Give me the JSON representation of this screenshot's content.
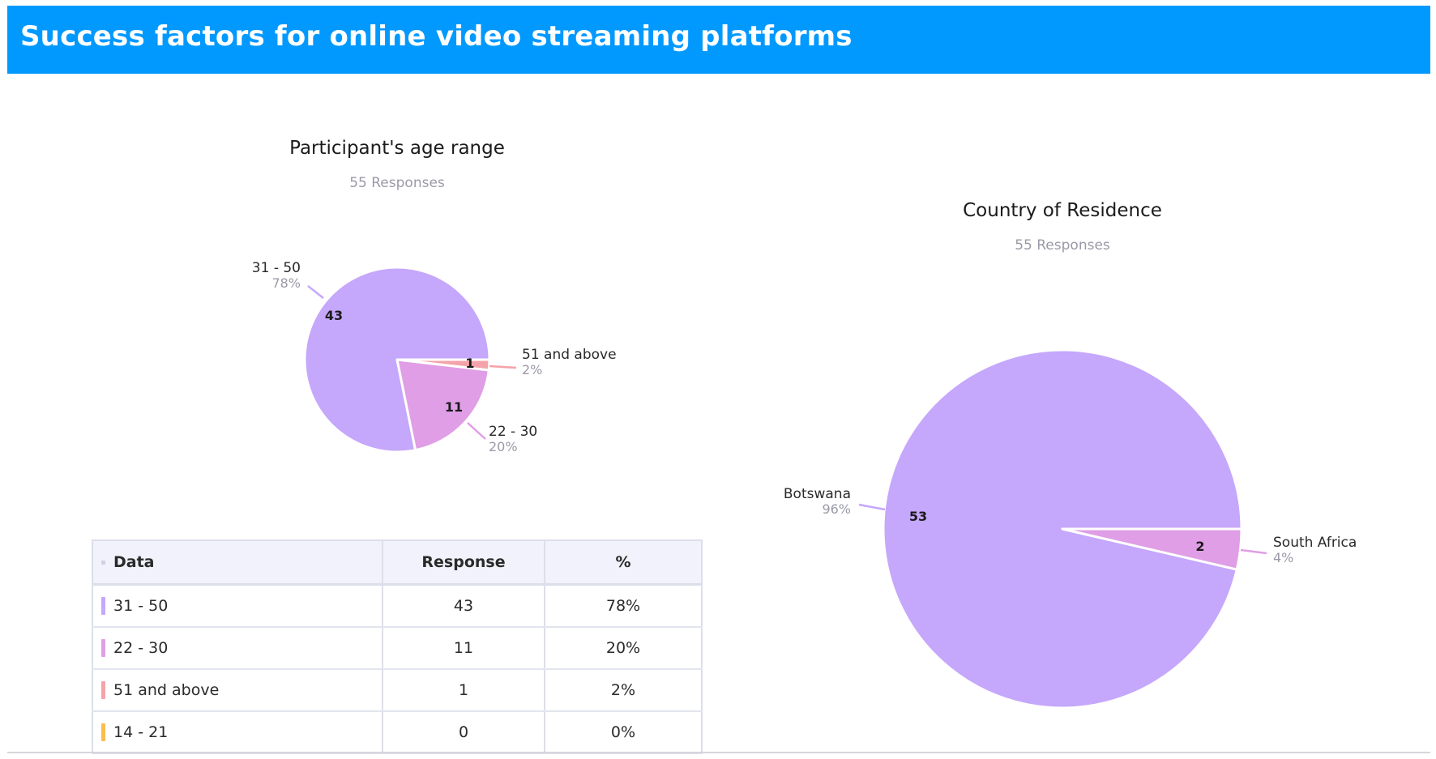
{
  "header": {
    "title": "Success factors for online video streaming platforms"
  },
  "chart_data": [
    {
      "type": "pie",
      "title": "Participant's age range",
      "subtitle": "55 Responses",
      "slices": [
        {
          "label": "31 - 50",
          "value": 43,
          "percent": "78%",
          "color": "#c5a7fb"
        },
        {
          "label": "22 - 30",
          "value": 11,
          "percent": "20%",
          "color": "#e09ee6"
        },
        {
          "label": "51 and above",
          "value": 1,
          "percent": "2%",
          "color": "#f5a3aa"
        }
      ]
    },
    {
      "type": "pie",
      "title": "Country of Residence",
      "subtitle": "55 Responses",
      "slices": [
        {
          "label": "Botswana",
          "value": 53,
          "percent": "96%",
          "color": "#c5a7fb"
        },
        {
          "label": "South Africa",
          "value": 2,
          "percent": "4%",
          "color": "#e09ee6"
        }
      ]
    }
  ],
  "table": {
    "headers": [
      "Data",
      "Response",
      "%"
    ],
    "rows": [
      {
        "label": "31 - 50",
        "response": "43",
        "percent": "78%",
        "color": "#c5a7fb"
      },
      {
        "label": "22 - 30",
        "response": "11",
        "percent": "20%",
        "color": "#e09ee6"
      },
      {
        "label": "51 and above",
        "response": "1",
        "percent": "2%",
        "color": "#f5a3aa"
      },
      {
        "label": "14 - 21",
        "response": "0",
        "percent": "0%",
        "color": "#fbbd4e"
      }
    ]
  }
}
